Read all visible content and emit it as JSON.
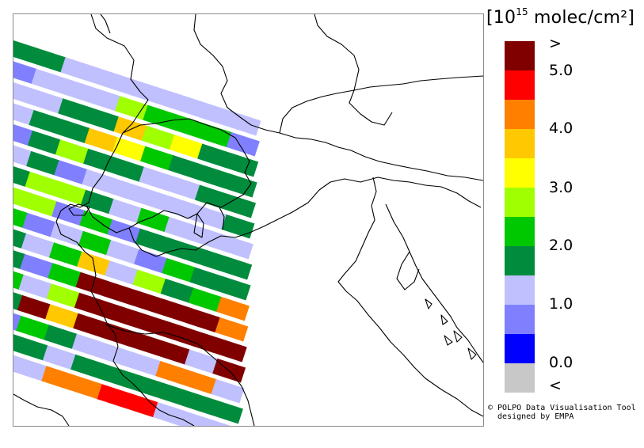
{
  "legend": {
    "title_prefix": "[10",
    "title_exponent": "15",
    "title_suffix": " molec/cm²]",
    "top_label": ">",
    "bottom_label": "<",
    "tick_labels": [
      "5.0",
      "4.0",
      "3.0",
      "2.0",
      "1.0",
      "0.0"
    ],
    "colors": [
      "#800000",
      "#ff0000",
      "#ff8000",
      "#ffc800",
      "#ffff00",
      "#a0ff00",
      "#00c800",
      "#008c3c",
      "#c0c0ff",
      "#8080ff",
      "#0000ff",
      "#c8c8c8"
    ]
  },
  "credit": {
    "line1": "© POLPO Data Visualisation Tool",
    "line2": "  designed by EMPA"
  },
  "map": {
    "strips": [
      [
        "#008c3c",
        "#008c3c",
        "#008c3c",
        "#c0c0ff",
        "#c0c0ff",
        "#c0c0ff",
        "#c0c0ff",
        "#c0c0ff",
        "#c0c0ff",
        "#c0c0ff"
      ],
      [
        "#008c3c",
        "#8080ff",
        "#c0c0ff",
        "#c0c0ff",
        "#c0c0ff",
        "#a0ff00",
        "#00c800",
        "#00c800",
        "#00c800",
        "#8080ff"
      ],
      [
        "#008c3c",
        "#c0c0ff",
        "#c0c0ff",
        "#008c3c",
        "#008c3c",
        "#ffc800",
        "#a0ff00",
        "#ffff00",
        "#008c3c",
        "#008c3c"
      ],
      [
        "#8080ff",
        "#c0c0ff",
        "#008c3c",
        "#008c3c",
        "#ffc800",
        "#ffff00",
        "#00c800",
        "#008c3c",
        "#008c3c",
        "#008c3c"
      ],
      [
        "#008c3c",
        "#8080ff",
        "#008c3c",
        "#a0ff00",
        "#008c3c",
        "#008c3c",
        "#c0c0ff",
        "#c0c0ff",
        "#008c3c",
        "#008c3c"
      ],
      [
        "#008c3c",
        "#c0c0ff",
        "#008c3c",
        "#8080ff",
        "#c0c0ff",
        "#c0c0ff",
        "#c0c0ff",
        "#c0c0ff",
        "#c0c0ff",
        "#008c3c"
      ],
      [
        "#008c3c",
        "#008c3c",
        "#a0ff00",
        "#a0ff00",
        "#008c3c",
        "#c0c0ff",
        "#00c800",
        "#c0c0ff",
        "#c0c0ff",
        "#c0c0ff"
      ],
      [
        "#c0c0ff",
        "#a0ff00",
        "#a0ff00",
        "#8080ff",
        "#00c800",
        "#8080ff",
        "#008c3c",
        "#008c3c",
        "#008c3c",
        "#008c3c"
      ],
      [
        "#008c3c",
        "#00c800",
        "#8080ff",
        "#c0c0ff",
        "#00c800",
        "#c0c0ff",
        "#8080ff",
        "#00c800",
        "#008c3c",
        "#008c3c"
      ],
      [
        "#a0ff00",
        "#008c3c",
        "#c0c0ff",
        "#00c800",
        "#ffc800",
        "#c0c0ff",
        "#a0ff00",
        "#008c3c",
        "#00c800",
        "#ff8000"
      ],
      [
        "#008c3c",
        "#008c3c",
        "#8080ff",
        "#00c800",
        "#800000",
        "#800000",
        "#800000",
        "#800000",
        "#800000",
        "#ff8000"
      ],
      [
        "#a0ff00",
        "#00c800",
        "#c0c0ff",
        "#a0ff00",
        "#800000",
        "#800000",
        "#800000",
        "#800000",
        "#800000",
        "#800000"
      ],
      [
        "#008c3c",
        "#008c3c",
        "#800000",
        "#ffc800",
        "#800000",
        "#800000",
        "#800000",
        "#800000",
        "#c0c0ff",
        "#800000"
      ],
      [
        "#008c3c",
        "#8080ff",
        "#00c800",
        "#008c3c",
        "#c0c0ff",
        "#c0c0ff",
        "#c0c0ff",
        "#ff8000",
        "#ff8000",
        "#c0c0ff"
      ],
      [
        "#c0c0ff",
        "#008c3c",
        "#008c3c",
        "#c0c0ff",
        "#008c3c",
        "#008c3c",
        "#008c3c",
        "#008c3c",
        "#008c3c",
        "#008c3c"
      ],
      [
        "#c0c0ff",
        "#c0c0ff",
        "#c0c0ff",
        "#ff8000",
        "#ff8000",
        "#ff0000",
        "#ff0000",
        "#c0c0ff",
        "#c0c0ff",
        "#c0c0ff"
      ]
    ]
  }
}
